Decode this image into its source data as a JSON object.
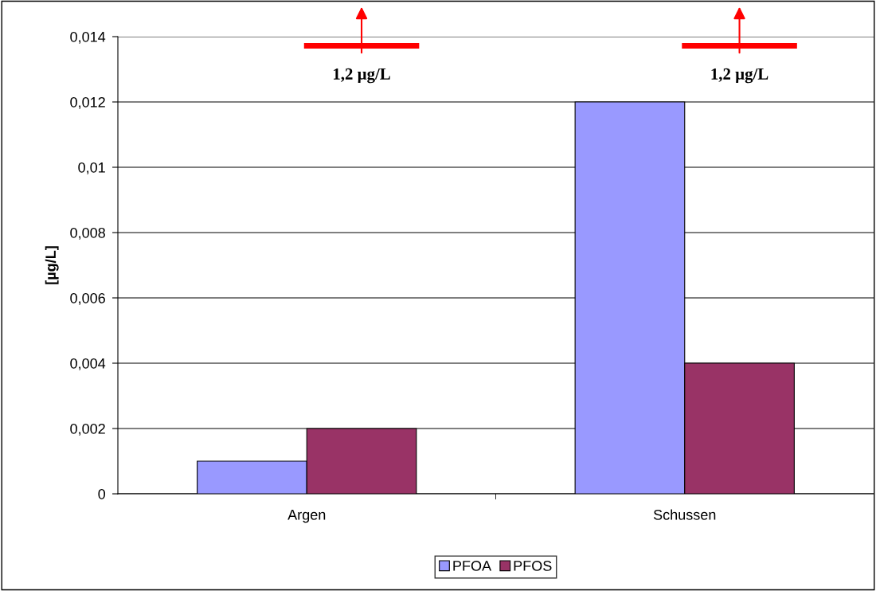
{
  "chart_data": {
    "type": "bar",
    "ylabel": "[µg/L]",
    "categories": [
      "Argen",
      "Schussen"
    ],
    "series": [
      {
        "name": "PFOA",
        "color": "#9999ff",
        "values": [
          0.001,
          0.012
        ]
      },
      {
        "name": "PFOS",
        "color": "#993366",
        "values": [
          0.002,
          0.004
        ]
      }
    ],
    "ylim": [
      0,
      0.014
    ],
    "yticks": [
      0,
      {
        "value": 0.002,
        "label": "0,002"
      },
      {
        "value": 0.004,
        "label": "0,004"
      },
      {
        "value": 0.006,
        "label": "0,006"
      },
      {
        "value": 0.008,
        "label": "0,008"
      },
      {
        "value": 0.01,
        "label": "0,01"
      },
      {
        "value": 0.012,
        "label": "0,012"
      },
      {
        "value": 0.014,
        "label": "0,014"
      }
    ],
    "grid": "y",
    "legend": "bottom",
    "annotations": [
      "1,2 µg/L",
      "1,2 µg/L"
    ]
  }
}
